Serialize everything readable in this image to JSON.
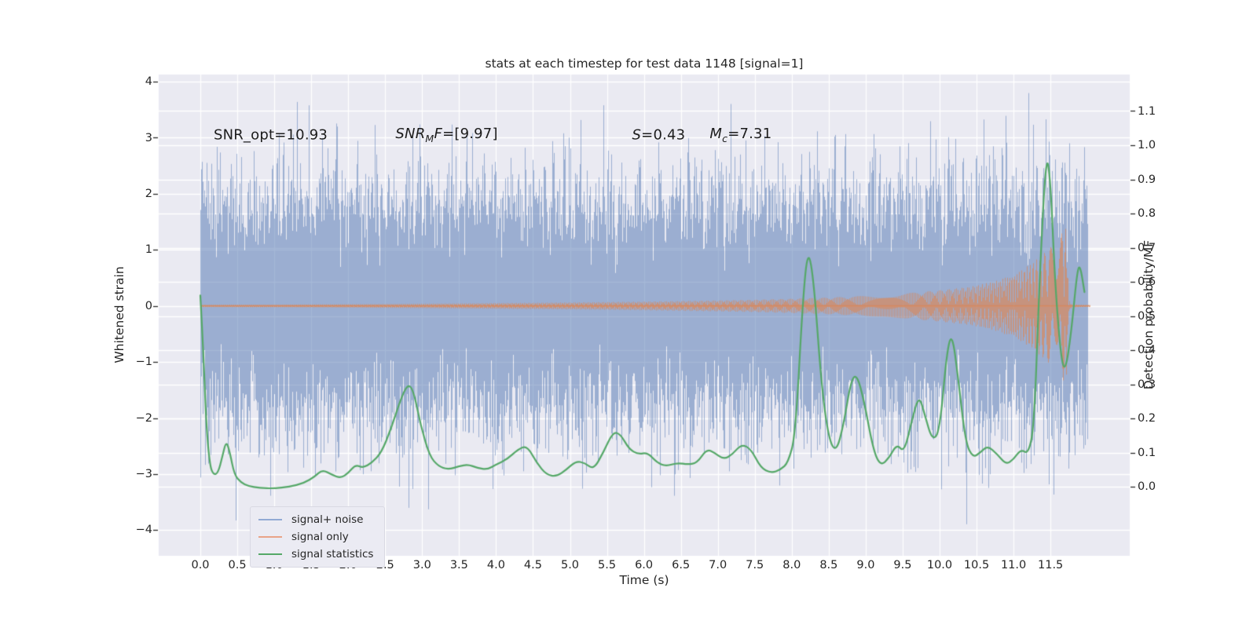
{
  "title": "stats at each timestep for test data 1148 [signal=1]",
  "stats": {
    "snr_opt": "10.93",
    "snr_mf": "[9.97]",
    "s": "0.43",
    "mc": "7.31"
  },
  "colors": {
    "figure_bg": "#ffffff",
    "axes_bg": "#eaeaf2",
    "grid": "#ffffff",
    "tick_text": "#262626",
    "noise_blue": "#4C72B0",
    "signal_orange": "#dd8452",
    "stats_green": "#55a868",
    "legend_swatch_blue": "#92aad4",
    "legend_swatch_orange": "#e9a387",
    "legend_swatch_green": "#55a868"
  },
  "axes": {
    "x": {
      "label": "Time (s)",
      "tick_labels": [
        "0.0",
        "0.5",
        "1.0",
        "1.5",
        "2.0",
        "2.5",
        "3.0",
        "3.5",
        "4.0",
        "4.5",
        "5.0",
        "5.5",
        "6.0",
        "6.5",
        "7.0",
        "7.5",
        "8.0",
        "8.5",
        "9.0",
        "9.5",
        "10.0",
        "10.5",
        "11.0",
        "11.5"
      ],
      "tick_values": [
        0,
        0.5,
        1,
        1.5,
        2,
        2.5,
        3,
        3.5,
        4,
        4.5,
        5,
        5.5,
        6,
        6.5,
        7,
        7.5,
        8,
        8.5,
        9,
        9.5,
        10,
        10.5,
        11,
        11.5
      ]
    },
    "y_left": {
      "label": "Whitened strain",
      "tick_labels": [
        "4",
        "3",
        "2",
        "1",
        "0",
        "−1",
        "−2",
        "−3",
        "−4"
      ],
      "tick_values": [
        4,
        3,
        2,
        1,
        0,
        -1,
        -2,
        -3,
        -4
      ]
    },
    "y_right": {
      "label": "Detection probability/MF",
      "tick_labels": [
        "1.1",
        "1.0",
        "0.9",
        "0.8",
        "0.7",
        "0.6",
        "0.5",
        "0.4",
        "0.3",
        "0.2",
        "0.1",
        "0.0"
      ],
      "tick_values": [
        1.1,
        1.0,
        0.9,
        0.8,
        0.7,
        0.6,
        0.5,
        0.4,
        0.3,
        0.2,
        0.1,
        0.0
      ]
    }
  },
  "annotations": [
    {
      "name": "snr-opt",
      "anchor_t": 0.18,
      "anchor_v": 3.05,
      "parts": [
        {
          "t": "SNR_opt=10.93"
        }
      ]
    },
    {
      "name": "snr-mf",
      "anchor_t": 2.64,
      "anchor_v": 3.05,
      "parts": [
        {
          "t": "SNR",
          "i": 1
        },
        {
          "t": "M",
          "i": 1,
          "sub": 1
        },
        {
          "t": "F",
          "i": 1
        },
        {
          "t": "=[9.97]"
        }
      ]
    },
    {
      "name": "s-stat",
      "anchor_t": 5.84,
      "anchor_v": 3.05,
      "parts": [
        {
          "t": "S",
          "i": 1
        },
        {
          "t": "=0.43"
        }
      ]
    },
    {
      "name": "chirp-mass",
      "anchor_t": 6.89,
      "anchor_v": 3.05,
      "parts": [
        {
          "t": "M",
          "i": 1
        },
        {
          "t": "c",
          "i": 1,
          "sub": 1
        },
        {
          "t": "=7.31"
        }
      ]
    }
  ],
  "legend": {
    "items": [
      {
        "label": "signal+ noise",
        "color": "#92aad4"
      },
      {
        "label": "signal only",
        "color": "#e9a387"
      },
      {
        "label": "signal statistics",
        "color": "#55a868"
      }
    ]
  },
  "chart_data": {
    "type": "line",
    "title": "stats at each timestep for test data 1148 [signal=1]",
    "xlabel": "Time (s)",
    "ylabel_left": "Whitened strain",
    "ylabel_right": "Detection probability/MF",
    "xlim": [
      -0.56,
      12.57
    ],
    "ylim_left": [
      -4.46,
      4.13
    ],
    "ylim_right": [
      -0.202,
      1.207
    ],
    "grid": true,
    "legend_position": "lower left",
    "series": [
      {
        "name": "signal+ noise",
        "render": "noise_band",
        "axis": "left",
        "color": "#4C72B0",
        "alpha": 0.5,
        "t_range": [
          0,
          12.0
        ],
        "std": 1.0,
        "samples_per_column": 20,
        "seed": 1148,
        "typical_solid_band": [
          -1.65,
          1.65
        ],
        "extreme_spikes": [
          -4.15,
          3.75
        ]
      },
      {
        "name": "signal only",
        "render": "chirp",
        "axis": "left",
        "color": "#dd8452",
        "alpha": 0.65,
        "t_range": [
          0,
          12.03
        ],
        "merger_t": 11.72,
        "envelope": [
          [
            0,
            0.022
          ],
          [
            1,
            0.025
          ],
          [
            2,
            0.032
          ],
          [
            3,
            0.04
          ],
          [
            4,
            0.052
          ],
          [
            5,
            0.063
          ],
          [
            6,
            0.078
          ],
          [
            7,
            0.098
          ],
          [
            7.5,
            0.11
          ],
          [
            8,
            0.128
          ],
          [
            8.5,
            0.15
          ],
          [
            9,
            0.18
          ],
          [
            9.5,
            0.22
          ],
          [
            10,
            0.28
          ],
          [
            10.4,
            0.34
          ],
          [
            10.8,
            0.46
          ],
          [
            11.1,
            0.63
          ],
          [
            11.3,
            0.82
          ],
          [
            11.5,
            1.05
          ],
          [
            11.62,
            1.25
          ],
          [
            11.7,
            1.38
          ],
          [
            11.72,
            1.1
          ],
          [
            11.74,
            0.12
          ],
          [
            11.78,
            0.03
          ],
          [
            11.9,
            0.02
          ],
          [
            12.03,
            0.018
          ]
        ]
      },
      {
        "name": "signal statistics",
        "render": "smooth_line",
        "axis": "right",
        "color": "#55a868",
        "alpha": 1.0,
        "points": [
          [
            0,
            0.56
          ],
          [
            0.04,
            0.4
          ],
          [
            0.08,
            0.18
          ],
          [
            0.13,
            0.06
          ],
          [
            0.18,
            0.035
          ],
          [
            0.24,
            0.04
          ],
          [
            0.3,
            0.09
          ],
          [
            0.35,
            0.135
          ],
          [
            0.4,
            0.1
          ],
          [
            0.46,
            0.035
          ],
          [
            0.55,
            0.012
          ],
          [
            0.65,
            0.002
          ],
          [
            0.8,
            -0.004
          ],
          [
            1.0,
            -0.005
          ],
          [
            1.2,
            0.0
          ],
          [
            1.4,
            0.01
          ],
          [
            1.55,
            0.03
          ],
          [
            1.65,
            0.05
          ],
          [
            1.78,
            0.035
          ],
          [
            1.9,
            0.025
          ],
          [
            2.0,
            0.04
          ],
          [
            2.1,
            0.065
          ],
          [
            2.2,
            0.055
          ],
          [
            2.32,
            0.07
          ],
          [
            2.45,
            0.1
          ],
          [
            2.58,
            0.17
          ],
          [
            2.7,
            0.25
          ],
          [
            2.8,
            0.3
          ],
          [
            2.88,
            0.285
          ],
          [
            2.98,
            0.18
          ],
          [
            3.1,
            0.09
          ],
          [
            3.22,
            0.06
          ],
          [
            3.35,
            0.05
          ],
          [
            3.5,
            0.06
          ],
          [
            3.62,
            0.065
          ],
          [
            3.75,
            0.055
          ],
          [
            3.88,
            0.05
          ],
          [
            4.0,
            0.065
          ],
          [
            4.15,
            0.08
          ],
          [
            4.3,
            0.11
          ],
          [
            4.42,
            0.12
          ],
          [
            4.55,
            0.07
          ],
          [
            4.68,
            0.035
          ],
          [
            4.82,
            0.03
          ],
          [
            4.95,
            0.05
          ],
          [
            5.08,
            0.075
          ],
          [
            5.2,
            0.07
          ],
          [
            5.32,
            0.05
          ],
          [
            5.45,
            0.1
          ],
          [
            5.58,
            0.16
          ],
          [
            5.68,
            0.155
          ],
          [
            5.8,
            0.11
          ],
          [
            5.92,
            0.095
          ],
          [
            6.05,
            0.1
          ],
          [
            6.18,
            0.07
          ],
          [
            6.3,
            0.06
          ],
          [
            6.45,
            0.07
          ],
          [
            6.6,
            0.065
          ],
          [
            6.72,
            0.07
          ],
          [
            6.85,
            0.11
          ],
          [
            6.95,
            0.1
          ],
          [
            7.08,
            0.08
          ],
          [
            7.2,
            0.095
          ],
          [
            7.32,
            0.125
          ],
          [
            7.45,
            0.11
          ],
          [
            7.58,
            0.055
          ],
          [
            7.72,
            0.04
          ],
          [
            7.85,
            0.05
          ],
          [
            7.95,
            0.07
          ],
          [
            8.05,
            0.15
          ],
          [
            8.15,
            0.55
          ],
          [
            8.22,
            0.7
          ],
          [
            8.3,
            0.6
          ],
          [
            8.4,
            0.3
          ],
          [
            8.5,
            0.14
          ],
          [
            8.6,
            0.1
          ],
          [
            8.7,
            0.18
          ],
          [
            8.8,
            0.31
          ],
          [
            8.88,
            0.33
          ],
          [
            8.98,
            0.25
          ],
          [
            9.1,
            0.11
          ],
          [
            9.2,
            0.06
          ],
          [
            9.32,
            0.085
          ],
          [
            9.42,
            0.125
          ],
          [
            9.52,
            0.1
          ],
          [
            9.62,
            0.19
          ],
          [
            9.72,
            0.27
          ],
          [
            9.8,
            0.21
          ],
          [
            9.9,
            0.135
          ],
          [
            10.0,
            0.16
          ],
          [
            10.1,
            0.4
          ],
          [
            10.17,
            0.45
          ],
          [
            10.25,
            0.32
          ],
          [
            10.35,
            0.13
          ],
          [
            10.45,
            0.085
          ],
          [
            10.55,
            0.1
          ],
          [
            10.65,
            0.12
          ],
          [
            10.78,
            0.095
          ],
          [
            10.9,
            0.065
          ],
          [
            11.0,
            0.08
          ],
          [
            11.1,
            0.11
          ],
          [
            11.2,
            0.095
          ],
          [
            11.28,
            0.18
          ],
          [
            11.35,
            0.6
          ],
          [
            11.44,
            0.98
          ],
          [
            11.5,
            0.9
          ],
          [
            11.56,
            0.6
          ],
          [
            11.64,
            0.38
          ],
          [
            11.7,
            0.335
          ],
          [
            11.78,
            0.45
          ],
          [
            11.86,
            0.63
          ],
          [
            11.9,
            0.65
          ],
          [
            11.96,
            0.57
          ]
        ]
      }
    ]
  }
}
